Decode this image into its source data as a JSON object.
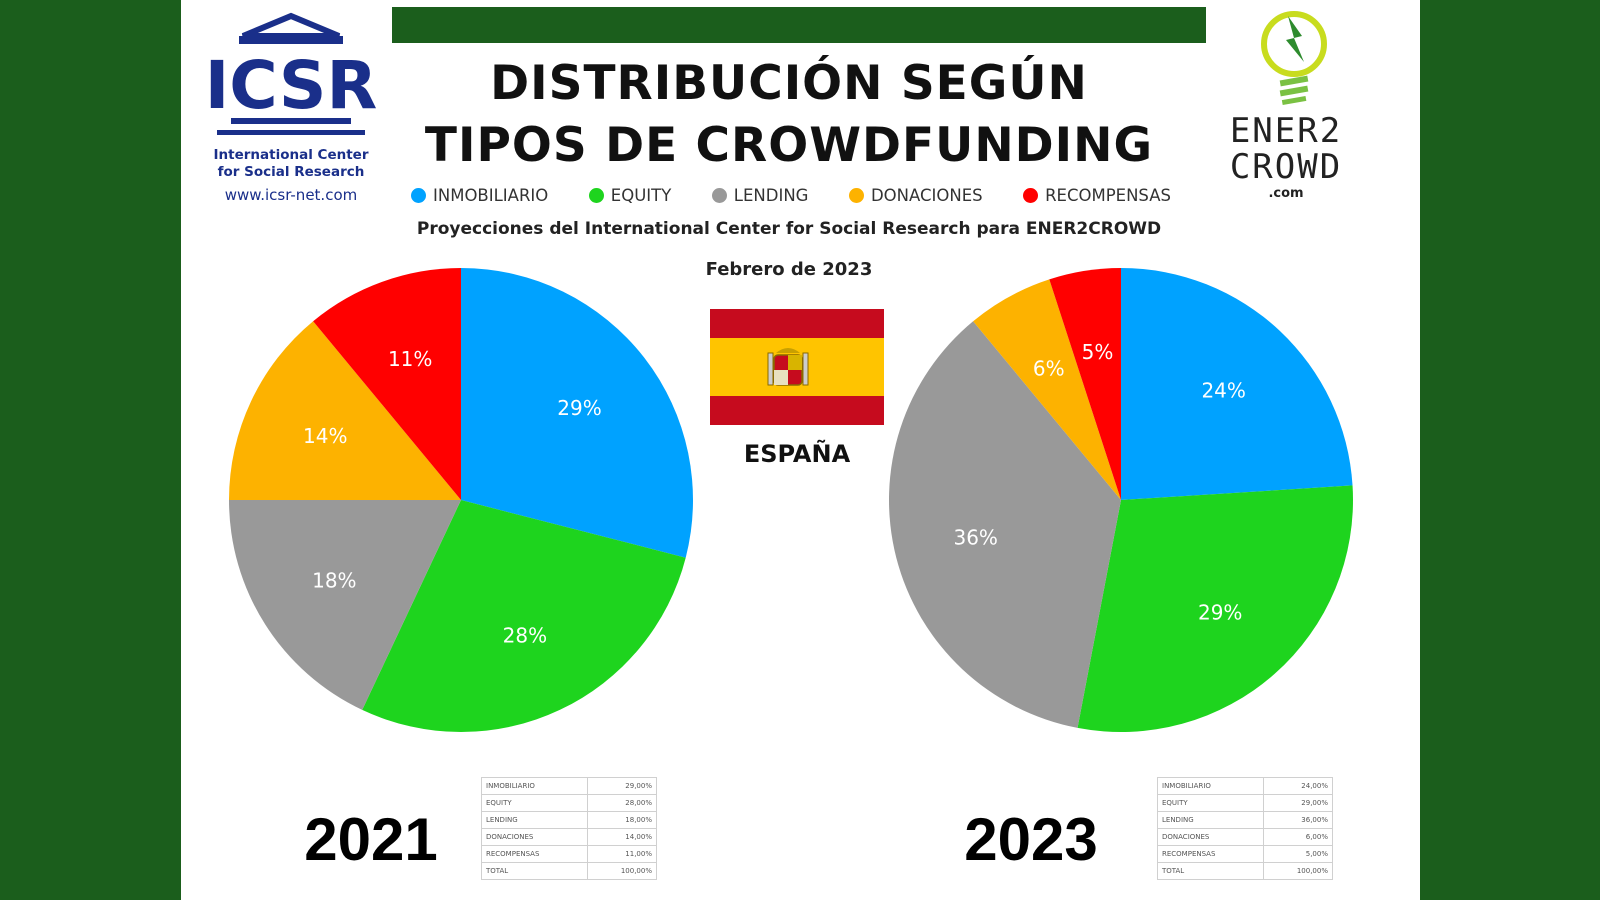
{
  "header": {
    "title_line1": "DISTRIBUCIÓN SEGÚN",
    "title_line2": "TIPOS DE CROWDFUNDING",
    "subtitle": "Proyecciones del International Center for Social Research para ENER2CROWD",
    "date": "Febrero de 2023",
    "country": "ESPAÑA"
  },
  "logo_left": {
    "mark": "ICSR",
    "line1": "International Center",
    "line2": "for Social Research",
    "url": "www.icsr-net.com"
  },
  "logo_right": {
    "line1": "ENER2",
    "line2": "CROWD",
    "suffix": ".com"
  },
  "colors": {
    "background": "#1b5e1c",
    "inmobiliario": "#00a2ff",
    "equity": "#1ed41e",
    "lending": "#999999",
    "donaciones": "#fdb200",
    "recompensas": "#ff0000"
  },
  "chart_data": [
    {
      "type": "pie",
      "title": "2021",
      "legend_position": "top",
      "categories": [
        "INMOBILIARIO",
        "EQUITY",
        "LENDING",
        "DONACIONES",
        "RECOMPENSAS"
      ],
      "values": [
        29,
        28,
        18,
        14,
        11
      ],
      "data_labels": [
        "29%",
        "28%",
        "18%",
        "14%",
        "11%"
      ],
      "colors": [
        "#00a2ff",
        "#1ed41e",
        "#999999",
        "#fdb200",
        "#ff0000"
      ],
      "table": {
        "rows": [
          {
            "label": "INMOBILIARIO",
            "value": "29,00%"
          },
          {
            "label": "EQUITY",
            "value": "28,00%"
          },
          {
            "label": "LENDING",
            "value": "18,00%"
          },
          {
            "label": "DONACIONES",
            "value": "14,00%"
          },
          {
            "label": "RECOMPENSAS",
            "value": "11,00%"
          },
          {
            "label": "TOTAL",
            "value": "100,00%"
          }
        ]
      }
    },
    {
      "type": "pie",
      "title": "2023",
      "legend_position": "top",
      "categories": [
        "INMOBILIARIO",
        "EQUITY",
        "LENDING",
        "DONACIONES",
        "RECOMPENSAS"
      ],
      "values": [
        24,
        29,
        36,
        6,
        5
      ],
      "data_labels": [
        "24%",
        "29%",
        "36%",
        "6%",
        "5%"
      ],
      "colors": [
        "#00a2ff",
        "#1ed41e",
        "#999999",
        "#fdb200",
        "#ff0000"
      ],
      "table": {
        "rows": [
          {
            "label": "INMOBILIARIO",
            "value": "24,00%"
          },
          {
            "label": "EQUITY",
            "value": "29,00%"
          },
          {
            "label": "LENDING",
            "value": "36,00%"
          },
          {
            "label": "DONACIONES",
            "value": "6,00%"
          },
          {
            "label": "RECOMPENSAS",
            "value": "5,00%"
          },
          {
            "label": "TOTAL",
            "value": "100,00%"
          }
        ]
      }
    }
  ]
}
